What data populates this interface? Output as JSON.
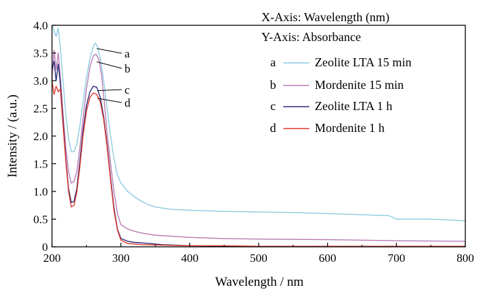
{
  "chart_data": {
    "type": "line",
    "xlabel": "Wavelength / nm",
    "ylabel": "Intensity / (a.u.)",
    "xlim": [
      200,
      800
    ],
    "ylim": [
      0,
      4.0
    ],
    "xticks": [
      200,
      300,
      400,
      500,
      600,
      700,
      800
    ],
    "yticks": [
      0,
      0.5,
      1.0,
      1.5,
      2.0,
      2.5,
      3.0,
      3.5,
      4.0
    ],
    "xtick_labels": [
      "200",
      "300",
      "400",
      "500",
      "600",
      "700",
      "800"
    ],
    "ytick_labels": [
      "0",
      "0.5",
      "1.0",
      "1.5",
      "2.0",
      "2.5",
      "3.0",
      "3.5",
      "4.0"
    ],
    "grid": false,
    "legend_position": "top-right",
    "annotations": [
      "X-Axis: Wavelength (nm)",
      "Y-Axis: Absorbance"
    ],
    "series": [
      {
        "name": "Zeolite LTA 15 min",
        "letter": "a",
        "color": "#8ecbe0",
        "x": [
          200,
          203,
          206,
          209,
          212,
          216,
          220,
          224,
          228,
          232,
          236,
          240,
          245,
          250,
          255,
          260,
          263,
          266,
          270,
          275,
          280,
          285,
          290,
          295,
          300,
          310,
          320,
          330,
          340,
          350,
          370,
          400,
          450,
          500,
          550,
          600,
          650,
          690,
          700,
          750,
          800
        ],
        "y": [
          4.0,
          3.9,
          3.8,
          3.95,
          3.6,
          3.0,
          2.4,
          1.95,
          1.72,
          1.72,
          1.85,
          2.15,
          2.6,
          3.05,
          3.4,
          3.62,
          3.68,
          3.62,
          3.4,
          3.0,
          2.5,
          2.0,
          1.6,
          1.3,
          1.15,
          1.0,
          0.9,
          0.82,
          0.76,
          0.72,
          0.68,
          0.66,
          0.64,
          0.63,
          0.62,
          0.6,
          0.58,
          0.56,
          0.5,
          0.5,
          0.47
        ]
      },
      {
        "name": "Mordenite 15 min",
        "letter": "b",
        "color": "#b77bb3",
        "x": [
          200,
          203,
          206,
          209,
          212,
          216,
          220,
          224,
          228,
          232,
          236,
          240,
          245,
          250,
          255,
          260,
          264,
          268,
          272,
          276,
          280,
          285,
          290,
          295,
          300,
          310,
          320,
          330,
          350,
          400,
          450,
          500,
          600,
          700,
          800
        ],
        "y": [
          3.0,
          3.55,
          3.2,
          3.5,
          3.1,
          2.4,
          1.8,
          1.35,
          1.15,
          1.18,
          1.35,
          1.75,
          2.3,
          2.85,
          3.25,
          3.45,
          3.48,
          3.38,
          3.1,
          2.6,
          2.05,
          1.5,
          1.0,
          0.6,
          0.4,
          0.32,
          0.28,
          0.25,
          0.21,
          0.17,
          0.15,
          0.14,
          0.13,
          0.11,
          0.1
        ]
      },
      {
        "name": "Zeolite LTA 1 h",
        "letter": "c",
        "color": "#2a2a78",
        "x": [
          200,
          203,
          206,
          209,
          212,
          216,
          220,
          224,
          228,
          232,
          236,
          240,
          245,
          250,
          255,
          260,
          265,
          270,
          275,
          280,
          285,
          290,
          295,
          300,
          310,
          320,
          340,
          360,
          380,
          400,
          450,
          500,
          600,
          700,
          800
        ],
        "y": [
          3.2,
          3.35,
          3.0,
          3.3,
          2.95,
          2.3,
          1.6,
          1.05,
          0.8,
          0.82,
          1.05,
          1.5,
          2.1,
          2.55,
          2.8,
          2.9,
          2.88,
          2.7,
          2.35,
          1.85,
          1.25,
          0.7,
          0.32,
          0.15,
          0.1,
          0.08,
          0.06,
          0.04,
          0.03,
          0.02,
          0.01,
          0.01,
          0.01,
          0.01,
          0.01
        ]
      },
      {
        "name": "Mordenite 1 h",
        "letter": "d",
        "color": "#e03a2e",
        "x": [
          200,
          203,
          206,
          209,
          212,
          216,
          220,
          224,
          228,
          232,
          236,
          240,
          245,
          250,
          255,
          260,
          265,
          270,
          275,
          280,
          285,
          290,
          295,
          300,
          310,
          330,
          360,
          400,
          450,
          500,
          600,
          700,
          800
        ],
        "y": [
          3.0,
          2.75,
          2.9,
          2.8,
          2.85,
          2.2,
          1.55,
          1.0,
          0.72,
          0.75,
          0.98,
          1.4,
          2.0,
          2.45,
          2.7,
          2.78,
          2.75,
          2.62,
          2.3,
          1.8,
          1.2,
          0.65,
          0.3,
          0.12,
          0.06,
          0.04,
          0.03,
          0.02,
          0.02,
          0.01,
          0.01,
          0.01,
          0.01
        ]
      }
    ]
  }
}
